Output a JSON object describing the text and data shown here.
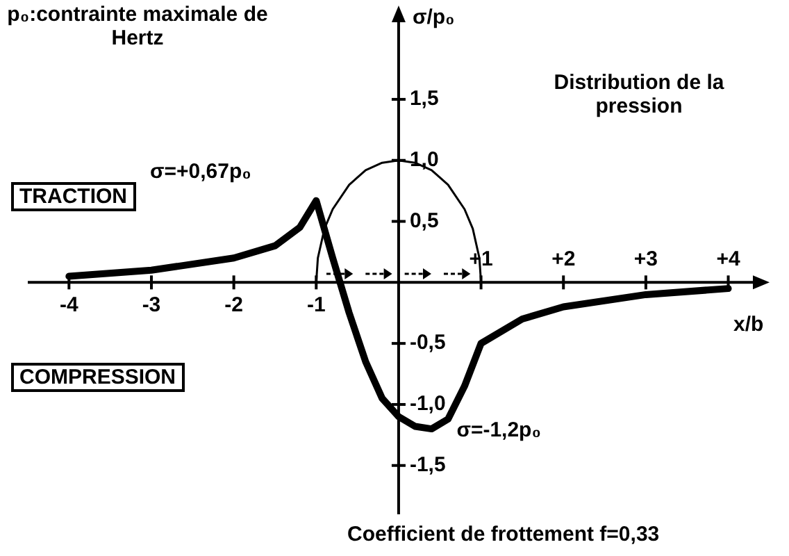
{
  "chart_data": {
    "type": "line",
    "xlabel": "x/b",
    "ylabel": "σ/p₀",
    "xlim": [
      -4.5,
      4.4
    ],
    "ylim": [
      -1.9,
      2.2
    ],
    "xticks": [
      -4,
      -3,
      -2,
      -1
    ],
    "x2lim": [
      -4.5,
      4.4
    ],
    "x2ticks": [
      {
        "value": 1,
        "label": "+1"
      },
      {
        "value": 2,
        "label": "+2"
      },
      {
        "value": 3,
        "label": "+3"
      },
      {
        "value": 4,
        "label": "+4"
      }
    ],
    "yticks": [
      {
        "value": 1.5,
        "label": "1,5"
      },
      {
        "value": 1,
        "label": "1,0"
      },
      {
        "value": 0.5,
        "label": "0,5"
      },
      {
        "value": -0.5,
        "label": "-0,5"
      },
      {
        "value": -1,
        "label": "-1,0"
      },
      {
        "value": -1.5,
        "label": "-1,5"
      }
    ],
    "grid": false,
    "legend": false,
    "marker": "none",
    "line_style": "solid",
    "series": [
      {
        "color": "#000000",
        "x": [
          -4,
          -3,
          -2,
          -1.5,
          -1.2,
          -1,
          -0.8,
          -0.6,
          -0.4,
          -0.2,
          0,
          0.2,
          0.4,
          0.6,
          0.8,
          1,
          1.5,
          2,
          3,
          4
        ],
        "values": [
          0.05,
          0.1,
          0.2,
          0.3,
          0.45,
          0.67,
          0.2,
          -0.25,
          -0.65,
          -0.95,
          -1.1,
          -1.18,
          -1.2,
          -1.12,
          -0.85,
          -0.5,
          -0.3,
          -0.2,
          -0.1,
          -0.05
        ]
      },
      {
        "color": "#000000",
        "x": [
          -1,
          -0.98,
          -0.9,
          -0.8,
          -0.6,
          -0.4,
          -0.2,
          0,
          0.2,
          0.4,
          0.6,
          0.8,
          0.9,
          0.98,
          1
        ],
        "values": [
          0,
          0.2,
          0.44,
          0.6,
          0.8,
          0.92,
          0.98,
          1,
          0.98,
          0.92,
          0.8,
          0.6,
          0.44,
          0.2,
          0
        ]
      }
    ],
    "annotations": [
      "p₀:contrainte maximale de Hertz",
      "σ=+0,67p₀",
      "Distribution de la pression",
      "TRACTION",
      "COMPRESSION",
      {
        "text": "σ=-1,2p₀",
        "x": 0.4,
        "y": -1.2
      },
      "Coefficient de frottement f=0,33"
    ]
  }
}
